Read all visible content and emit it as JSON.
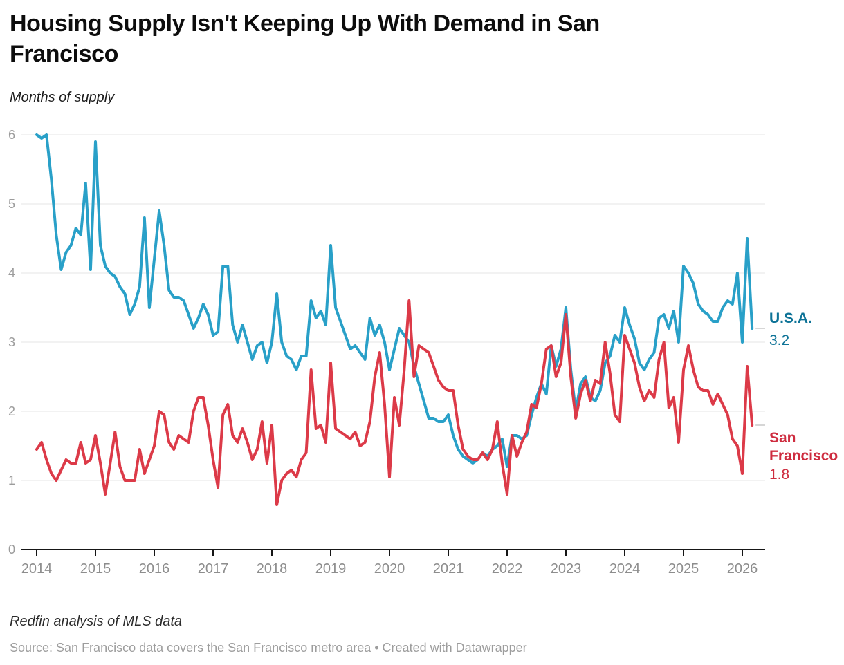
{
  "header": {
    "title_line1": "Housing Supply Isn't Keeping Up With Demand in San",
    "title_line2": "Francisco",
    "subtitle": "Months of supply"
  },
  "chart_data": {
    "type": "line",
    "title": "Housing Supply Isn't Keeping Up With Demand in San Francisco",
    "ylabel": "Months of supply",
    "xlabel": "",
    "ylim": [
      0,
      6
    ],
    "y_ticks": [
      6,
      5,
      4,
      3,
      2,
      1,
      0
    ],
    "x_ticks": [
      2014,
      2015,
      2016,
      2017,
      2018,
      2019,
      2020,
      2021,
      2022,
      2023,
      2024,
      2025,
      2026
    ],
    "grid": "horizontal",
    "legend_position": "right-edge-direct-labels",
    "frequency": "monthly",
    "start_month": "2014-01",
    "end_month": "2026-03",
    "style": {
      "grid_color": "#e4e4e4",
      "axis_color": "#161616",
      "tick_label_color": "#8d8d8d",
      "y_label_color": "#9c9c9c",
      "connector_color": "#c9c9c9"
    },
    "series": [
      {
        "name": "U.S.A.",
        "color": "#29a0c8",
        "label_color": "#0e7397",
        "end_label": "3.2",
        "values": [
          6,
          5.95,
          6,
          5.35,
          4.55,
          4.05,
          4.3,
          4.4,
          4.65,
          4.55,
          5.3,
          4.05,
          5.9,
          4.4,
          4.1,
          4.0,
          3.95,
          3.8,
          3.7,
          3.4,
          3.55,
          3.8,
          4.8,
          3.5,
          4.2,
          4.9,
          4.4,
          3.75,
          3.65,
          3.65,
          3.6,
          3.4,
          3.2,
          3.35,
          3.55,
          3.4,
          3.1,
          3.15,
          4.1,
          4.1,
          3.25,
          3.0,
          3.25,
          3.0,
          2.75,
          2.95,
          3.0,
          2.7,
          3.0,
          3.7,
          3.0,
          2.8,
          2.75,
          2.6,
          2.8,
          2.8,
          3.6,
          3.35,
          3.45,
          3.25,
          4.4,
          3.5,
          3.3,
          3.1,
          2.9,
          2.95,
          2.85,
          2.75,
          3.35,
          3.1,
          3.25,
          3.0,
          2.6,
          2.9,
          3.2,
          3.1,
          3.0,
          2.65,
          2.4,
          2.15,
          1.9,
          1.9,
          1.85,
          1.85,
          1.95,
          1.65,
          1.45,
          1.35,
          1.3,
          1.25,
          1.3,
          1.4,
          1.35,
          1.45,
          1.5,
          1.6,
          1.2,
          1.65,
          1.65,
          1.6,
          1.65,
          1.95,
          2.2,
          2.4,
          2.25,
          2.95,
          2.65,
          2.9,
          3.5,
          2.6,
          2.0,
          2.4,
          2.5,
          2.2,
          2.15,
          2.3,
          2.7,
          2.8,
          3.1,
          3.0,
          3.5,
          3.25,
          3.05,
          2.7,
          2.6,
          2.75,
          2.85,
          3.35,
          3.4,
          3.2,
          3.45,
          3.0,
          4.1,
          4.0,
          3.85,
          3.55,
          3.45,
          3.4,
          3.3,
          3.3,
          3.5,
          3.6,
          3.55,
          4.0,
          3.0,
          4.5,
          3.2
        ]
      },
      {
        "name": "San Francisco",
        "label_line1": "San",
        "label_line2": "Francisco",
        "color": "#dc3a48",
        "label_color": "#ce2c3f",
        "end_label": "1.8",
        "values": [
          1.45,
          1.55,
          1.3,
          1.1,
          1.0,
          1.15,
          1.3,
          1.25,
          1.25,
          1.55,
          1.25,
          1.3,
          1.65,
          1.25,
          0.8,
          1.25,
          1.7,
          1.2,
          1.0,
          1.0,
          1.0,
          1.45,
          1.1,
          1.3,
          1.5,
          2.0,
          1.95,
          1.55,
          1.45,
          1.65,
          1.6,
          1.55,
          2.0,
          2.2,
          2.2,
          1.8,
          1.3,
          0.9,
          1.95,
          2.1,
          1.65,
          1.55,
          1.75,
          1.55,
          1.3,
          1.45,
          1.85,
          1.25,
          1.8,
          0.65,
          1.0,
          1.1,
          1.15,
          1.05,
          1.3,
          1.4,
          2.6,
          1.75,
          1.8,
          1.55,
          2.7,
          1.75,
          1.7,
          1.65,
          1.6,
          1.7,
          1.5,
          1.55,
          1.85,
          2.5,
          2.85,
          2.1,
          1.05,
          2.2,
          1.8,
          2.6,
          3.6,
          2.5,
          2.95,
          2.9,
          2.85,
          2.65,
          2.45,
          2.35,
          2.3,
          2.3,
          1.8,
          1.45,
          1.35,
          1.3,
          1.3,
          1.4,
          1.3,
          1.45,
          1.85,
          1.25,
          0.8,
          1.65,
          1.35,
          1.55,
          1.7,
          2.1,
          2.05,
          2.4,
          2.9,
          2.95,
          2.5,
          2.7,
          3.4,
          2.5,
          1.9,
          2.25,
          2.45,
          2.15,
          2.45,
          2.4,
          3.0,
          2.55,
          1.95,
          1.85,
          3.1,
          2.9,
          2.7,
          2.35,
          2.15,
          2.3,
          2.2,
          2.75,
          3.0,
          2.05,
          2.2,
          1.55,
          2.6,
          2.95,
          2.6,
          2.35,
          2.3,
          2.3,
          2.1,
          2.25,
          2.1,
          1.95,
          1.6,
          1.5,
          1.1,
          2.65,
          1.8
        ]
      }
    ]
  },
  "footer": {
    "byline": "Redfin analysis of MLS data",
    "source": "Source: San Francisco data covers the San Francisco metro area • Created with Datawrapper"
  }
}
